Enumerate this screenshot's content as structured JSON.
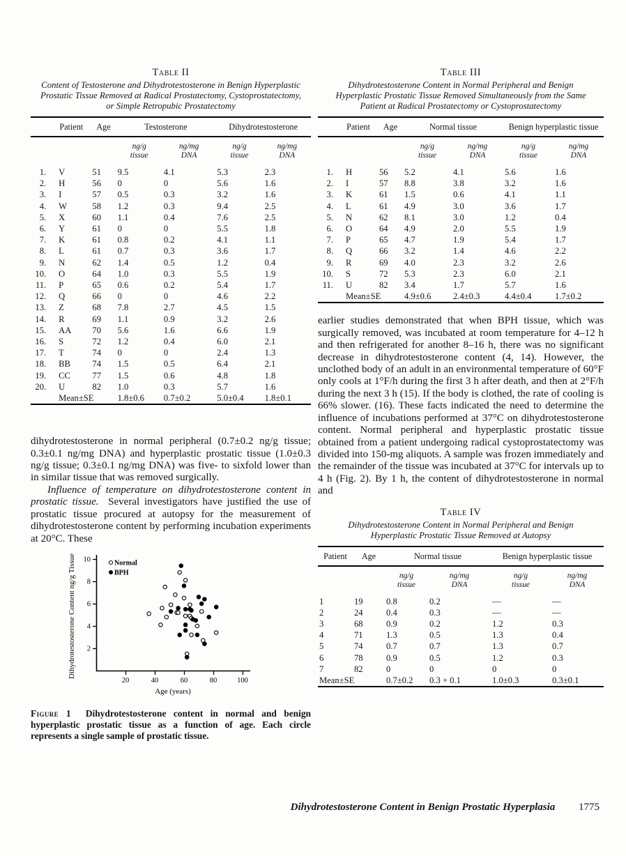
{
  "table2": {
    "label": "Table II",
    "title": "Content of Testosterone and Dihydrotestosterone in Benign Hyperplastic Prostatic Tissue Removed at Radical Prostatectomy, Cystoprostatectomy, or Simple Retropubic Prostatectomy",
    "headers": {
      "index": "",
      "patient": "Patient",
      "age": "Age",
      "group1": "Testosterone",
      "group2": "Dihydrotestosterone",
      "unit_ngg_1": "ng/g\ntissue",
      "unit_ngmg_1": "ng/mg\nDNA",
      "unit_ngg_2": "ng/g\ntissue",
      "unit_ngmg_2": "ng/mg\nDNA"
    },
    "rows": [
      [
        "1.",
        "V",
        "51",
        "9.5",
        "4.1",
        "5.3",
        "2.3"
      ],
      [
        "2.",
        "H",
        "56",
        "0",
        "0",
        "5.6",
        "1.6"
      ],
      [
        "3.",
        "I",
        "57",
        "0.5",
        "0.3",
        "3.2",
        "1.6"
      ],
      [
        "4.",
        "W",
        "58",
        "1.2",
        "0.3",
        "9.4",
        "2.5"
      ],
      [
        "5.",
        "X",
        "60",
        "1.1",
        "0.4",
        "7.6",
        "2.5"
      ],
      [
        "6.",
        "Y",
        "61",
        "0",
        "0",
        "5.5",
        "1.8"
      ],
      [
        "7.",
        "K",
        "61",
        "0.8",
        "0.2",
        "4.1",
        "1.1"
      ],
      [
        "8.",
        "L",
        "61",
        "0.7",
        "0.3",
        "3.6",
        "1.7"
      ],
      [
        "9.",
        "N",
        "62",
        "1.4",
        "0.5",
        "1.2",
        "0.4"
      ],
      [
        "10.",
        "O",
        "64",
        "1.0",
        "0.3",
        "5.5",
        "1.9"
      ],
      [
        "11.",
        "P",
        "65",
        "0.6",
        "0.2",
        "5.4",
        "1.7"
      ],
      [
        "12.",
        "Q",
        "66",
        "0",
        "0",
        "4.6",
        "2.2"
      ],
      [
        "13.",
        "Z",
        "68",
        "7.8",
        "2.7",
        "4.5",
        "1.5"
      ],
      [
        "14.",
        "R",
        "69",
        "1.1",
        "0.9",
        "3.2",
        "2.6"
      ],
      [
        "15.",
        "AA",
        "70",
        "5.6",
        "1.6",
        "6.6",
        "1.9"
      ],
      [
        "16.",
        "S",
        "72",
        "1.2",
        "0.4",
        "6.0",
        "2.1"
      ],
      [
        "17.",
        "T",
        "74",
        "0",
        "0",
        "2.4",
        "1.3"
      ],
      [
        "18.",
        "BB",
        "74",
        "1.5",
        "0.5",
        "6.4",
        "2.1"
      ],
      [
        "19.",
        "CC",
        "77",
        "1.5",
        "0.6",
        "4.8",
        "1.8"
      ],
      [
        "20.",
        "U",
        "82",
        "1.0",
        "0.3",
        "5.7",
        "1.6"
      ]
    ],
    "mean_row": [
      "",
      "Mean±SE",
      "",
      "1.8±0.6",
      "0.7±0.2",
      "5.0±0.4",
      "1.8±0.1"
    ]
  },
  "table3": {
    "label": "Table III",
    "title": "Dihydrotestosterone Content in Normal Peripheral and Benign Hyperplastic Prostatic Tissue Removed Simultaneously from the Same Patient at Radical Prostatectomy or Cystoprostatectomy",
    "headers": {
      "index": "",
      "patient": "Patient",
      "age": "Age",
      "group1": "Normal tissue",
      "group2": "Benign hyperplastic tissue",
      "unit_ngg_1": "ng/g\ntissue",
      "unit_ngmg_1": "ng/mg\nDNA",
      "unit_ngg_2": "ng/g\ntissue",
      "unit_ngmg_2": "ng/mg\nDNA"
    },
    "rows": [
      [
        "1.",
        "H",
        "56",
        "5.2",
        "4.1",
        "5.6",
        "1.6"
      ],
      [
        "2.",
        "I",
        "57",
        "8.8",
        "3.8",
        "3.2",
        "1.6"
      ],
      [
        "3.",
        "K",
        "61",
        "1.5",
        "0.6",
        "4.1",
        "1.1"
      ],
      [
        "4.",
        "L",
        "61",
        "4.9",
        "3.0",
        "3.6",
        "1.7"
      ],
      [
        "5.",
        "N",
        "62",
        "8.1",
        "3.0",
        "1.2",
        "0.4"
      ],
      [
        "6.",
        "O",
        "64",
        "4.9",
        "2.0",
        "5.5",
        "1.9"
      ],
      [
        "7.",
        "P",
        "65",
        "4.7",
        "1.9",
        "5.4",
        "1.7"
      ],
      [
        "8.",
        "Q",
        "66",
        "3.2",
        "1.4",
        "4.6",
        "2.2"
      ],
      [
        "9.",
        "R",
        "69",
        "4.0",
        "2.3",
        "3.2",
        "2.6"
      ],
      [
        "10.",
        "S",
        "72",
        "5.3",
        "2.3",
        "6.0",
        "2.1"
      ],
      [
        "11.",
        "U",
        "82",
        "3.4",
        "1.7",
        "5.7",
        "1.6"
      ]
    ],
    "mean_row": [
      "",
      "Mean±SE",
      "",
      "4.9±0.6",
      "2.4±0.3",
      "4.4±0.4",
      "1.7±0.2"
    ]
  },
  "table4": {
    "label": "Table IV",
    "title": "Dihydrotestosterone Content in Normal Peripheral and Benign Hyperplastic Prostatic Tissue Removed at Autopsy",
    "headers": {
      "patient": "Patient",
      "age": "Age",
      "group1": "Normal tissue",
      "group2": "Benign hyperplastic tissue",
      "unit_ngg_1": "ng/g\ntissue",
      "unit_ngmg_1": "ng/mg\nDNA",
      "unit_ngg_2": "ng/g\ntissue",
      "unit_ngmg_2": "ng/mg\nDNA"
    },
    "rows": [
      [
        "1",
        "19",
        "0.8",
        "0.2",
        "—",
        "—"
      ],
      [
        "2",
        "24",
        "0.4",
        "0.3",
        "—",
        "—"
      ],
      [
        "3",
        "68",
        "0.9",
        "0.2",
        "1.2",
        "0.3"
      ],
      [
        "4",
        "71",
        "1.3",
        "0.5",
        "1.3",
        "0.4"
      ],
      [
        "5",
        "74",
        "0.7",
        "0.7",
        "1.3",
        "0.7"
      ],
      [
        "6",
        "78",
        "0.9",
        "0.5",
        "1.2",
        "0.3"
      ],
      [
        "7",
        "82",
        "0",
        "0",
        "0",
        "0"
      ]
    ],
    "mean_row": [
      "Mean±SE",
      "",
      "0.7±0.2",
      "0.3 + 0.1",
      "1.0±0.3",
      "0.3±0.1"
    ]
  },
  "left_column": {
    "para1": "dihydrotestosterone in normal peripheral (0.7±0.2 ng/g tissue; 0.3±0.1 ng/mg DNA) and hyperplastic prostatic tissue (1.0±0.3 ng/g tissue; 0.3±0.1 ng/mg DNA) was five- to sixfold lower than in similar tissue that was removed surgically.",
    "para2_lead": "Influence of temperature on dihydrotestosterone content in prostatic tissue.",
    "para2_rest": "Several investigators have justified the use of prostatic tissue procured at autopsy for the measurement of dihydrotestosterone content by performing incubation experiments at 20°C. These"
  },
  "right_column": {
    "para": "earlier studies demonstrated that when BPH tissue, which was surgically removed, was incubated at room temperature for 4–12 h and then refrigerated for another 8–16 h, there was no significant decrease in dihydrotestosterone content (4, 14). However, the unclothed body of an adult in an environmental temperature of 60°F only cools at 1°F/h during the first 3 h after death, and then at 2°F/h during the next 3 h (15). If the body is clothed, the rate of cooling is 66% slower. (16). These facts indicated the need to determine the influence of incubations performed at 37°C on dihydrotestosterone content. Normal peripheral and hyperplastic prostatic tissue obtained from a patient undergoing radical cystoprostatectomy was divided into 150-mg aliquots. A sample was frozen immediately and the remainder of the tissue was incubated at 37°C for intervals up to 4 h (Fig. 2). By 1 h, the content of dihydrotestosterone in normal and"
  },
  "figure": {
    "caption_label": "Figure 1",
    "caption_text": "Dihydrotestosterone content in normal and benign hyperplastic prostatic tissue as a function of age. Each circle represents a single sample of prostatic tissue."
  },
  "chart_data": {
    "type": "scatter",
    "xlabel": "Age (years)",
    "ylabel": "Dihydrotestosterone Content ng/g Tissue",
    "xlim": [
      0,
      105
    ],
    "ylim": [
      0,
      10
    ],
    "xticks": [
      20,
      40,
      60,
      80,
      100
    ],
    "yticks": [
      2,
      4,
      6,
      8,
      10
    ],
    "grid": false,
    "legend_position": "top-left",
    "series": [
      {
        "name": "Normal",
        "marker": "open-circle",
        "points": [
          [
            36,
            5.1
          ],
          [
            44,
            4.1
          ],
          [
            45,
            5.6
          ],
          [
            47,
            7.5
          ],
          [
            48,
            4.8
          ],
          [
            51,
            5.9
          ],
          [
            54,
            6.8
          ],
          [
            55,
            5.2
          ],
          [
            56,
            5.2
          ],
          [
            57,
            8.8
          ],
          [
            60,
            6.5
          ],
          [
            61,
            8.1
          ],
          [
            61,
            4.9
          ],
          [
            62,
            1.5
          ],
          [
            64,
            5.9
          ],
          [
            64,
            4.9
          ],
          [
            65,
            4.7
          ],
          [
            65,
            3.2
          ],
          [
            69,
            4.0
          ],
          [
            72,
            5.3
          ],
          [
            73,
            2.7
          ],
          [
            82,
            3.4
          ]
        ]
      },
      {
        "name": "BPH",
        "marker": "filled-circle",
        "points": [
          [
            51,
            5.3
          ],
          [
            56,
            5.6
          ],
          [
            57,
            3.2
          ],
          [
            58,
            9.4
          ],
          [
            60,
            7.6
          ],
          [
            61,
            5.5
          ],
          [
            61,
            4.1
          ],
          [
            61,
            3.6
          ],
          [
            62,
            1.2
          ],
          [
            64,
            5.5
          ],
          [
            65,
            5.4
          ],
          [
            66,
            4.6
          ],
          [
            68,
            4.5
          ],
          [
            69,
            3.2
          ],
          [
            70,
            6.6
          ],
          [
            72,
            6.0
          ],
          [
            74,
            2.4
          ],
          [
            74,
            6.4
          ],
          [
            77,
            4.8
          ],
          [
            82,
            5.7
          ]
        ]
      }
    ]
  },
  "footer": {
    "title": "Dihydrotestosterone Content in Benign Prostatic Hyperplasia",
    "page_number": "1775"
  }
}
